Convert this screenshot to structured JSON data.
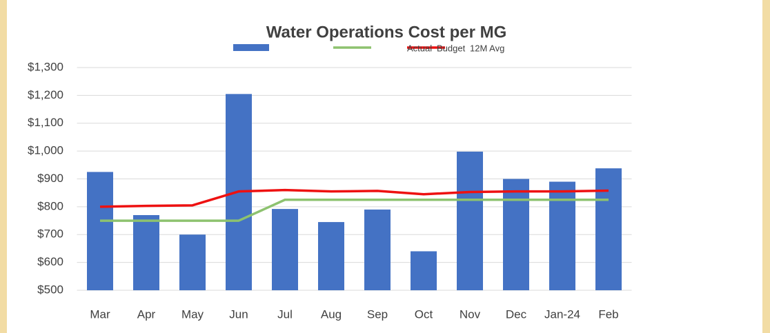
{
  "chart_data": {
    "type": "bar",
    "title": "Water Operations Cost per MG",
    "categories": [
      "Mar",
      "Apr",
      "May",
      "Jun",
      "Jul",
      "Aug",
      "Sep",
      "Oct",
      "Nov",
      "Dec",
      "Jan-24",
      "Feb"
    ],
    "series": [
      {
        "name": "Actual",
        "type": "bar",
        "color": "#4472c4",
        "values": [
          925,
          770,
          700,
          1205,
          792,
          745,
          790,
          640,
          998,
          900,
          890,
          938
        ]
      },
      {
        "name": "Budget",
        "type": "line",
        "color": "#8dc26f",
        "values": [
          750,
          750,
          750,
          750,
          825,
          825,
          825,
          825,
          825,
          825,
          825,
          825
        ]
      },
      {
        "name": "12M Avg",
        "type": "line",
        "color": "#ee1111",
        "values": [
          800,
          803,
          805,
          855,
          860,
          855,
          857,
          845,
          853,
          855,
          855,
          858
        ]
      }
    ],
    "ylim": [
      500,
      1300
    ],
    "yticks": [
      {
        "value": 500,
        "label": "$500"
      },
      {
        "value": 600,
        "label": "$600"
      },
      {
        "value": 700,
        "label": "$700"
      },
      {
        "value": 800,
        "label": "$800"
      },
      {
        "value": 900,
        "label": "$900"
      },
      {
        "value": 1000,
        "label": "$1,000"
      },
      {
        "value": 1100,
        "label": "$1,100"
      },
      {
        "value": 1200,
        "label": "$1,200"
      },
      {
        "value": 1300,
        "label": "$1,300"
      }
    ],
    "grid": true
  }
}
